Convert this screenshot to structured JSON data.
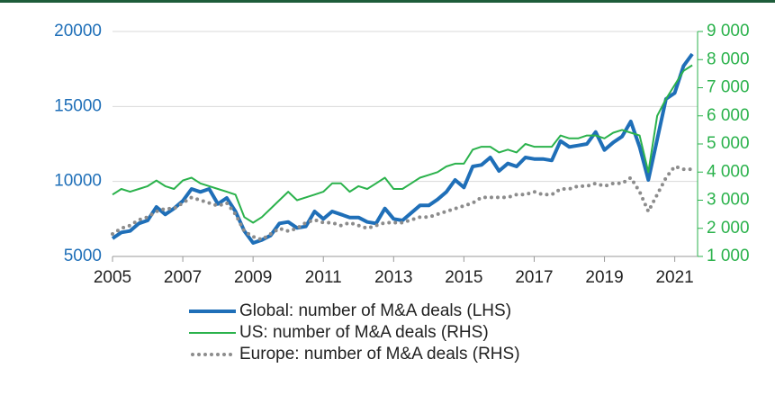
{
  "chart_data": {
    "type": "line",
    "x": [
      2005,
      2005.25,
      2005.5,
      2005.75,
      2006,
      2006.25,
      2006.5,
      2006.75,
      2007,
      2007.25,
      2007.5,
      2007.75,
      2008,
      2008.25,
      2008.5,
      2008.75,
      2009,
      2009.25,
      2009.5,
      2009.75,
      2010,
      2010.25,
      2010.5,
      2010.75,
      2011,
      2011.25,
      2011.5,
      2011.75,
      2012,
      2012.25,
      2012.5,
      2012.75,
      2013,
      2013.25,
      2013.5,
      2013.75,
      2014,
      2014.25,
      2014.5,
      2014.75,
      2015,
      2015.25,
      2015.5,
      2015.75,
      2016,
      2016.25,
      2016.5,
      2016.75,
      2017,
      2017.25,
      2017.5,
      2017.75,
      2018,
      2018.25,
      2018.5,
      2018.75,
      2019,
      2019.25,
      2019.5,
      2019.75,
      2020,
      2020.25,
      2020.5,
      2020.75,
      2021,
      2021.25,
      2021.5
    ],
    "series": [
      {
        "name": "Global: number of M&A deals (LHS)",
        "color": "#1f6fb8",
        "axis": "y",
        "dash": "solid",
        "width": 4,
        "values": [
          6200,
          6600,
          6700,
          7200,
          7400,
          8300,
          7800,
          8200,
          8700,
          9500,
          9300,
          9500,
          8500,
          8900,
          8000,
          6700,
          5900,
          6100,
          6400,
          7200,
          7300,
          6900,
          7000,
          8000,
          7500,
          8000,
          7800,
          7600,
          7600,
          7300,
          7200,
          8200,
          7500,
          7400,
          7900,
          8400,
          8400,
          8800,
          9300,
          10100,
          9600,
          11000,
          11100,
          11600,
          10700,
          11200,
          11000,
          11600,
          11500,
          11500,
          11400,
          12700,
          12300,
          12400,
          12500,
          13300,
          12100,
          12600,
          13000,
          14000,
          12300,
          10100,
          12800,
          15500,
          15900,
          17700,
          18500
        ]
      },
      {
        "name": "US: number of M&A deals (RHS)",
        "color": "#2bb24c",
        "axis": "y2",
        "dash": "solid",
        "width": 2,
        "values": [
          3200,
          3400,
          3300,
          3400,
          3500,
          3700,
          3500,
          3400,
          3700,
          3800,
          3600,
          3500,
          3400,
          3300,
          3200,
          2400,
          2200,
          2400,
          2700,
          3000,
          3300,
          3000,
          3100,
          3200,
          3300,
          3600,
          3600,
          3300,
          3500,
          3400,
          3600,
          3800,
          3400,
          3400,
          3600,
          3800,
          3900,
          4000,
          4200,
          4300,
          4300,
          4800,
          4900,
          4900,
          4700,
          4800,
          4700,
          5000,
          4900,
          4900,
          4900,
          5300,
          5200,
          5200,
          5300,
          5300,
          5200,
          5400,
          5500,
          5400,
          5300,
          4000,
          6000,
          6600,
          7100,
          7600,
          7800
        ]
      },
      {
        "name": "Europe: number of M&A deals (RHS)",
        "color": "#8c8c8c",
        "axis": "y2",
        "dash": "dotted",
        "width": 4,
        "values": [
          1800,
          2000,
          2100,
          2300,
          2400,
          2600,
          2700,
          2700,
          2900,
          3100,
          3000,
          2900,
          2800,
          2900,
          2500,
          1900,
          1700,
          1600,
          1800,
          2000,
          1900,
          2000,
          2200,
          2300,
          2200,
          2200,
          2100,
          2200,
          2100,
          2000,
          2100,
          2200,
          2200,
          2200,
          2300,
          2400,
          2400,
          2500,
          2600,
          2700,
          2800,
          2900,
          3100,
          3100,
          3100,
          3100,
          3200,
          3200,
          3300,
          3200,
          3200,
          3400,
          3400,
          3500,
          3500,
          3600,
          3500,
          3600,
          3600,
          3800,
          3300,
          2600,
          3200,
          3800,
          4200,
          4100,
          4100
        ]
      }
    ],
    "xlim": [
      2005,
      2021.65
    ],
    "xticks": [
      2005,
      2007,
      2009,
      2011,
      2013,
      2015,
      2017,
      2019,
      2021
    ],
    "ylim": [
      5000,
      20000
    ],
    "yticks": [
      5000,
      10000,
      15000,
      20000
    ],
    "y2lim": [
      1000,
      9000
    ],
    "y2ticks": [
      {
        "value": 1000,
        "label": "1 000"
      },
      {
        "value": 2000,
        "label": "2 000"
      },
      {
        "value": 3000,
        "label": "3 000"
      },
      {
        "value": 4000,
        "label": "4 000"
      },
      {
        "value": 5000,
        "label": "5 000"
      },
      {
        "value": 6000,
        "label": "6 000"
      },
      {
        "value": 7000,
        "label": "7 000"
      },
      {
        "value": 8000,
        "label": "8 000"
      },
      {
        "value": 9000,
        "label": "9 000"
      }
    ],
    "grid": true,
    "legend": "bottom"
  }
}
